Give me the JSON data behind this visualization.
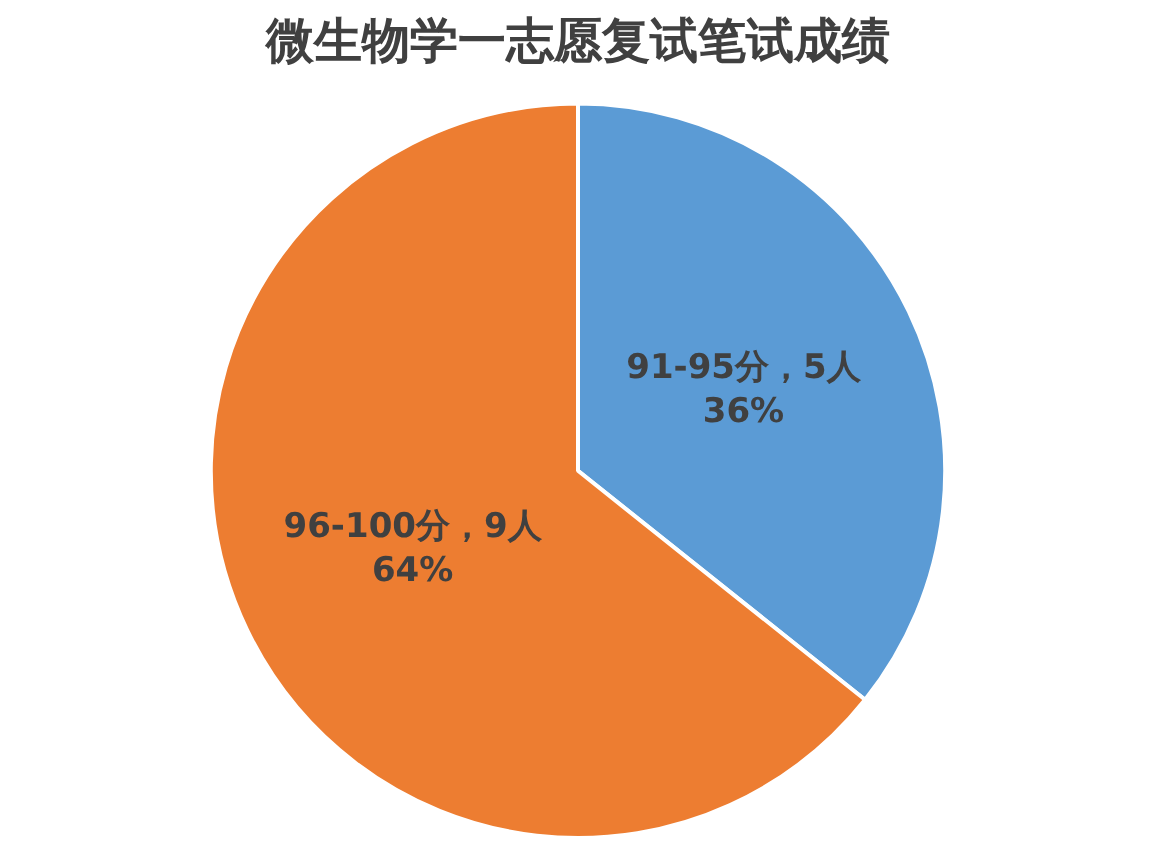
{
  "chart_data": {
    "type": "pie",
    "title": "微生物学一志愿复试笔试成绩",
    "categories": [
      "91-95分",
      "96-100分"
    ],
    "values": [
      5,
      9
    ],
    "colors": [
      "#5b9bd5",
      "#ed7d31"
    ],
    "value_labels": [
      "，5人\n36%",
      "，9人\n64%"
    ],
    "legend": false
  }
}
